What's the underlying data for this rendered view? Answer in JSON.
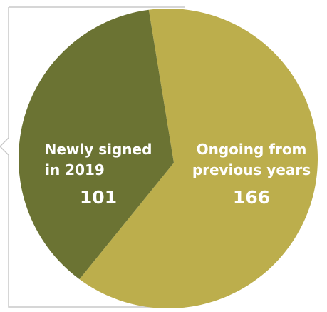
{
  "chart_data": {
    "type": "pie",
    "categories": [
      "Newly signed in 2019",
      "Ongoing from previous years"
    ],
    "values": [
      101,
      166
    ],
    "labels": [
      {
        "lines": [
          "Newly signed",
          "in 2019"
        ],
        "value_text": "101"
      },
      {
        "lines": [
          "Ongoing from",
          "previous years"
        ],
        "value_text": "166"
      }
    ],
    "colors": [
      "#6b7333",
      "#bcae4c"
    ],
    "frame_color": "#c8c8c8",
    "legend": "none"
  }
}
